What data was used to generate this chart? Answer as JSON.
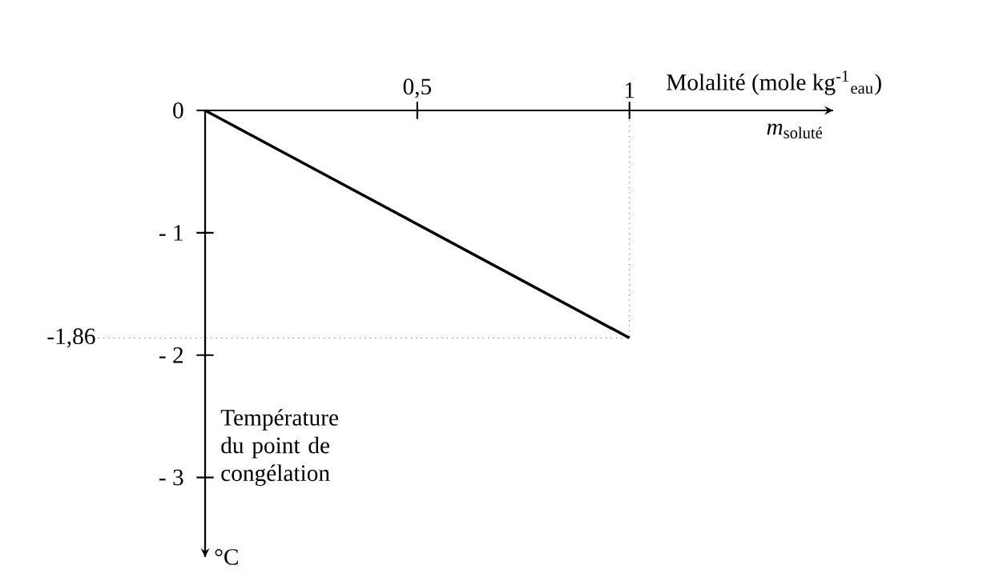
{
  "chart_data": {
    "type": "line",
    "xlabel": "Molalité  (mole kg$^{-1}$$_{eau}$)",
    "ylabel": "Température du point de congélation",
    "annotations": [
      "*m*$_{soluté}$",
      "°C"
    ],
    "x": [
      0,
      1
    ],
    "series": [
      {
        "color": "#000000",
        "values": [
          0,
          -1.86
        ]
      }
    ],
    "xlim": [
      0,
      1.48
    ],
    "ylim": [
      -3.65,
      0
    ],
    "xticks": [
      {
        "value": 0.5,
        "label": "0,5"
      },
      1
    ],
    "yticks": [
      0,
      {
        "value": -1,
        "label": "- 1"
      },
      {
        "value": -2,
        "label": "- 2"
      },
      {
        "value": -3,
        "label": "- 3"
      }
    ],
    "ref_lines": [
      {
        "axis": "y",
        "value": -1.86,
        "label": "-1,86",
        "line_style": "dotted"
      },
      {
        "axis": "x",
        "value": 1,
        "line_style": "dotted"
      }
    ],
    "marker": "none",
    "line_style": "solid",
    "grid": false
  }
}
